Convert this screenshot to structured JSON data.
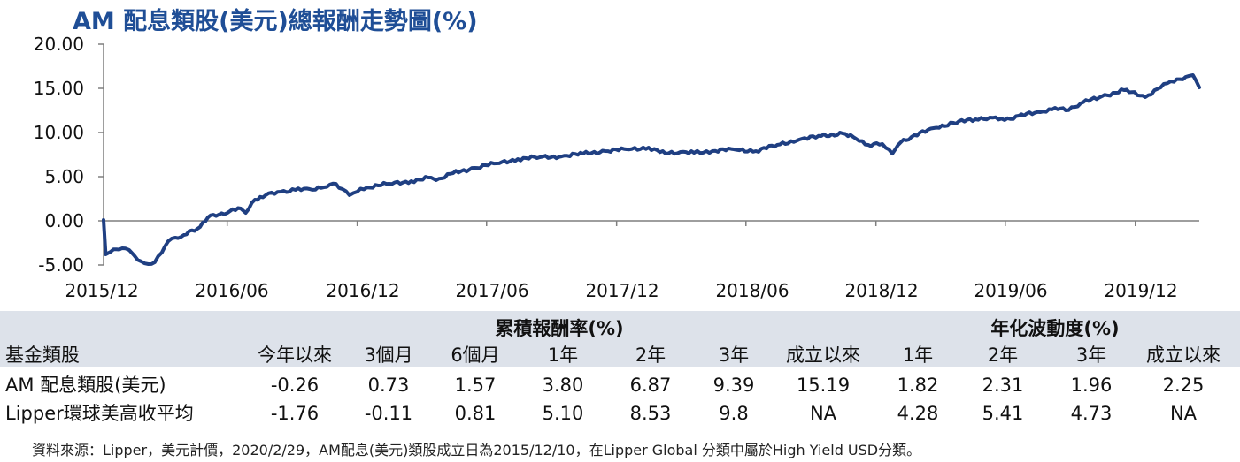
{
  "title": "AM 配息類股(美元)總報酬走勢圖(%)",
  "chart_data": {
    "type": "line",
    "title": "AM 配息類股(美元)總報酬走勢圖(%)",
    "ylim": [
      -5,
      20
    ],
    "y_ticks": [
      "20.00",
      "15.00",
      "10.00",
      "5.00",
      "0.00",
      "-5.00"
    ],
    "x_ticks": [
      "2015/12",
      "2016/06",
      "2016/12",
      "2017/06",
      "2017/12",
      "2018/06",
      "2018/12",
      "2019/06",
      "2019/12"
    ],
    "x_range": [
      "2015-12-10",
      "2020-02-29"
    ],
    "color": "#1f3f82",
    "series": [
      {
        "x": [
          "2015-12-10",
          "2015-12-13",
          "2015-12-20",
          "2016-01-05",
          "2016-01-15",
          "2016-01-22",
          "2016-02-01",
          "2016-02-11",
          "2016-02-20",
          "2016-03-01",
          "2016-03-10",
          "2016-03-20",
          "2016-04-01",
          "2016-04-20",
          "2016-05-05",
          "2016-05-20",
          "2016-06-05",
          "2016-06-20",
          "2016-06-27",
          "2016-07-10",
          "2016-07-25",
          "2016-08-15",
          "2016-09-05",
          "2016-09-25",
          "2016-10-15",
          "2016-11-01",
          "2016-11-10",
          "2016-11-20",
          "2016-12-01",
          "2016-12-15",
          "2017-01-15",
          "2017-02-15",
          "2017-03-15",
          "2017-03-22",
          "2017-04-15",
          "2017-05-15",
          "2017-06-15",
          "2017-07-15",
          "2017-08-15",
          "2017-09-15",
          "2017-10-15",
          "2017-11-15",
          "2017-12-15",
          "2018-01-15",
          "2018-02-08",
          "2018-03-01",
          "2018-03-20",
          "2018-04-15",
          "2018-05-15",
          "2018-06-15",
          "2018-07-15",
          "2018-08-15",
          "2018-09-15",
          "2018-10-15",
          "2018-10-30",
          "2018-11-20",
          "2018-12-10",
          "2018-12-24",
          "2019-01-05",
          "2019-01-20",
          "2019-02-20",
          "2019-03-20",
          "2019-04-20",
          "2019-05-10",
          "2019-05-31",
          "2019-06-20",
          "2019-07-20",
          "2019-08-10",
          "2019-08-25",
          "2019-09-15",
          "2019-10-15",
          "2019-11-15",
          "2019-12-15",
          "2020-01-10",
          "2020-01-20",
          "2020-02-10",
          "2020-02-20",
          "2020-02-29"
        ],
        "y": [
          0.1,
          -3.8,
          -3.5,
          -3.1,
          -3.3,
          -3.9,
          -4.6,
          -4.9,
          -4.7,
          -3.6,
          -2.3,
          -1.9,
          -1.6,
          -0.9,
          0.4,
          0.7,
          1.1,
          1.4,
          0.9,
          2.4,
          2.9,
          3.3,
          3.5,
          3.6,
          3.8,
          4.2,
          3.6,
          2.9,
          3.3,
          3.8,
          4.2,
          4.5,
          4.9,
          4.6,
          5.4,
          6.0,
          6.5,
          7.0,
          7.2,
          7.3,
          7.6,
          7.9,
          8.1,
          8.3,
          7.6,
          7.8,
          7.7,
          7.9,
          8.1,
          7.9,
          8.6,
          9.2,
          9.6,
          9.9,
          9.5,
          8.6,
          8.7,
          7.6,
          8.9,
          9.5,
          10.5,
          11.1,
          11.5,
          11.7,
          11.4,
          11.9,
          12.3,
          12.8,
          12.5,
          13.3,
          14.1,
          14.8,
          14.0,
          15.5,
          15.8,
          16.3,
          16.5,
          15.1
        ]
      }
    ]
  },
  "table": {
    "group1": "累積報酬率(%)",
    "group2": "年化波動度(%)",
    "headers": [
      "基金類股",
      "今年以來",
      "3個月",
      "6個月",
      "1年",
      "2年",
      "3年",
      "成立以來",
      "1年",
      "2年",
      "3年",
      "成立以來"
    ],
    "rows": [
      [
        "AM 配息類股(美元)",
        "-0.26",
        "0.73",
        "1.57",
        "3.80",
        "6.87",
        "9.39",
        "15.19",
        "1.82",
        "2.31",
        "1.96",
        "2.25"
      ],
      [
        "Lipper環球美高收平均",
        "-1.76",
        "-0.11",
        "0.81",
        "5.10",
        "8.53",
        "9.8",
        "NA",
        "4.28",
        "5.41",
        "4.73",
        "NA"
      ]
    ]
  },
  "footnote": "資料來源：Lipper，美元計價，2020/2/29，AM配息(美元)類股成立日為2015/12/10，在Lipper Global 分類中屬於High Yield USD分類。"
}
